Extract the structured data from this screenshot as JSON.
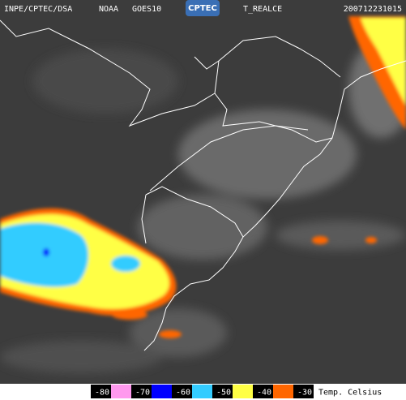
{
  "header": {
    "source": "INPE/CPTEC/DSA",
    "agency": "NOAA",
    "satellite": "GOES10",
    "logo": "CPTEC",
    "product": "T_REALCE",
    "timestamp": "200712231015"
  },
  "legend": {
    "items": [
      {
        "value": -80,
        "color": "#ffffff"
      },
      {
        "value": -70,
        "color": "#ff99ee"
      },
      {
        "value": -60,
        "color": "#0000ff"
      },
      {
        "value": -50,
        "color": "#33ccff"
      },
      {
        "value": -40,
        "color": "#ffff44"
      },
      {
        "value": -30,
        "color": "#ff6600"
      }
    ],
    "unit": "Temp. Celsius"
  }
}
